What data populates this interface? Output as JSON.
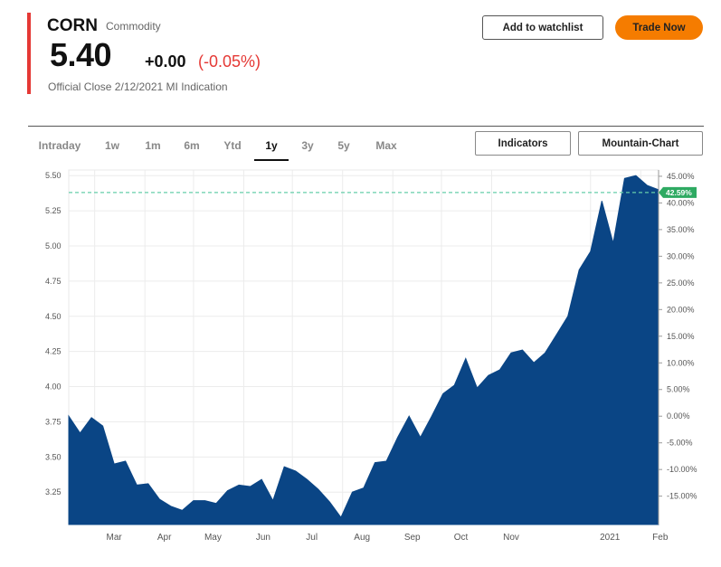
{
  "header": {
    "symbol": "CORN",
    "asset_type": "Commodity",
    "price": "5.40",
    "change": "+0.00",
    "change_pct": "(-0.05%)",
    "official_close": "Official Close 2/12/2021 MI Indication",
    "watchlist_label": "Add to watchlist",
    "trade_label": "Trade Now"
  },
  "toolbar": {
    "ranges": [
      "Intraday",
      "1w",
      "1m",
      "6m",
      "Ytd",
      "1y",
      "3y",
      "5y",
      "Max"
    ],
    "active_range": "1y",
    "indicators_label": "Indicators",
    "chart_type_label": "Mountain-Chart"
  },
  "colors": {
    "accent": "#e53935",
    "negative": "#e53935",
    "trade_button": "#f57c00",
    "area_fill": "#0a4585",
    "reference_line": "#66cdaa",
    "badge": "#2eaa62"
  },
  "chart_data": {
    "type": "area",
    "title": "",
    "xlabel": "",
    "ylabel": "",
    "ylim": [
      3.02,
      5.54
    ],
    "y_ticks": [
      "5.50",
      "5.25",
      "5.00",
      "4.75",
      "4.50",
      "4.25",
      "4.00",
      "3.75",
      "3.50",
      "3.25"
    ],
    "y2_ticks": [
      "45.00%",
      "40.00%",
      "35.00%",
      "30.00%",
      "25.00%",
      "20.00%",
      "15.00%",
      "10.00%",
      "5.00%",
      "0.00%",
      "-5.00%",
      "-10.00%",
      "-15.00%"
    ],
    "x_ticks": [
      "Mar",
      "Apr",
      "May",
      "Jun",
      "Jul",
      "Aug",
      "Sep",
      "Oct",
      "Nov",
      "2021",
      "Feb"
    ],
    "reference_value": 5.38,
    "reference_label": "42.59%",
    "points": [
      [
        "2020-02-14",
        3.79
      ],
      [
        "2020-02-21",
        3.67
      ],
      [
        "2020-02-28",
        3.78
      ],
      [
        "2020-03-06",
        3.72
      ],
      [
        "2020-03-13",
        3.45
      ],
      [
        "2020-03-20",
        3.47
      ],
      [
        "2020-03-27",
        3.3
      ],
      [
        "2020-04-03",
        3.31
      ],
      [
        "2020-04-10",
        3.2
      ],
      [
        "2020-04-17",
        3.15
      ],
      [
        "2020-04-24",
        3.12
      ],
      [
        "2020-05-01",
        3.19
      ],
      [
        "2020-05-08",
        3.19
      ],
      [
        "2020-05-15",
        3.17
      ],
      [
        "2020-05-22",
        3.26
      ],
      [
        "2020-05-29",
        3.3
      ],
      [
        "2020-06-05",
        3.29
      ],
      [
        "2020-06-12",
        3.34
      ],
      [
        "2020-06-19",
        3.19
      ],
      [
        "2020-06-26",
        3.43
      ],
      [
        "2020-07-03",
        3.4
      ],
      [
        "2020-07-10",
        3.34
      ],
      [
        "2020-07-17",
        3.27
      ],
      [
        "2020-07-24",
        3.18
      ],
      [
        "2020-07-31",
        3.07
      ],
      [
        "2020-08-07",
        3.25
      ],
      [
        "2020-08-14",
        3.28
      ],
      [
        "2020-08-21",
        3.46
      ],
      [
        "2020-08-28",
        3.47
      ],
      [
        "2020-09-04",
        3.64
      ],
      [
        "2020-09-11",
        3.79
      ],
      [
        "2020-09-18",
        3.64
      ],
      [
        "2020-09-25",
        3.79
      ],
      [
        "2020-10-02",
        3.95
      ],
      [
        "2020-10-09",
        4.01
      ],
      [
        "2020-10-16",
        4.2
      ],
      [
        "2020-10-23",
        3.99
      ],
      [
        "2020-10-30",
        4.08
      ],
      [
        "2020-11-06",
        4.12
      ],
      [
        "2020-11-13",
        4.24
      ],
      [
        "2020-11-20",
        4.26
      ],
      [
        "2020-11-27",
        4.17
      ],
      [
        "2020-12-04",
        4.24
      ],
      [
        "2020-12-11",
        4.37
      ],
      [
        "2020-12-18",
        4.5
      ],
      [
        "2020-12-25",
        4.83
      ],
      [
        "2021-01-01",
        4.96
      ],
      [
        "2021-01-08",
        5.32
      ],
      [
        "2021-01-15",
        5.02
      ],
      [
        "2021-01-22",
        5.48
      ],
      [
        "2021-01-29",
        5.5
      ],
      [
        "2021-02-05",
        5.43
      ],
      [
        "2021-02-12",
        5.4
      ]
    ]
  }
}
